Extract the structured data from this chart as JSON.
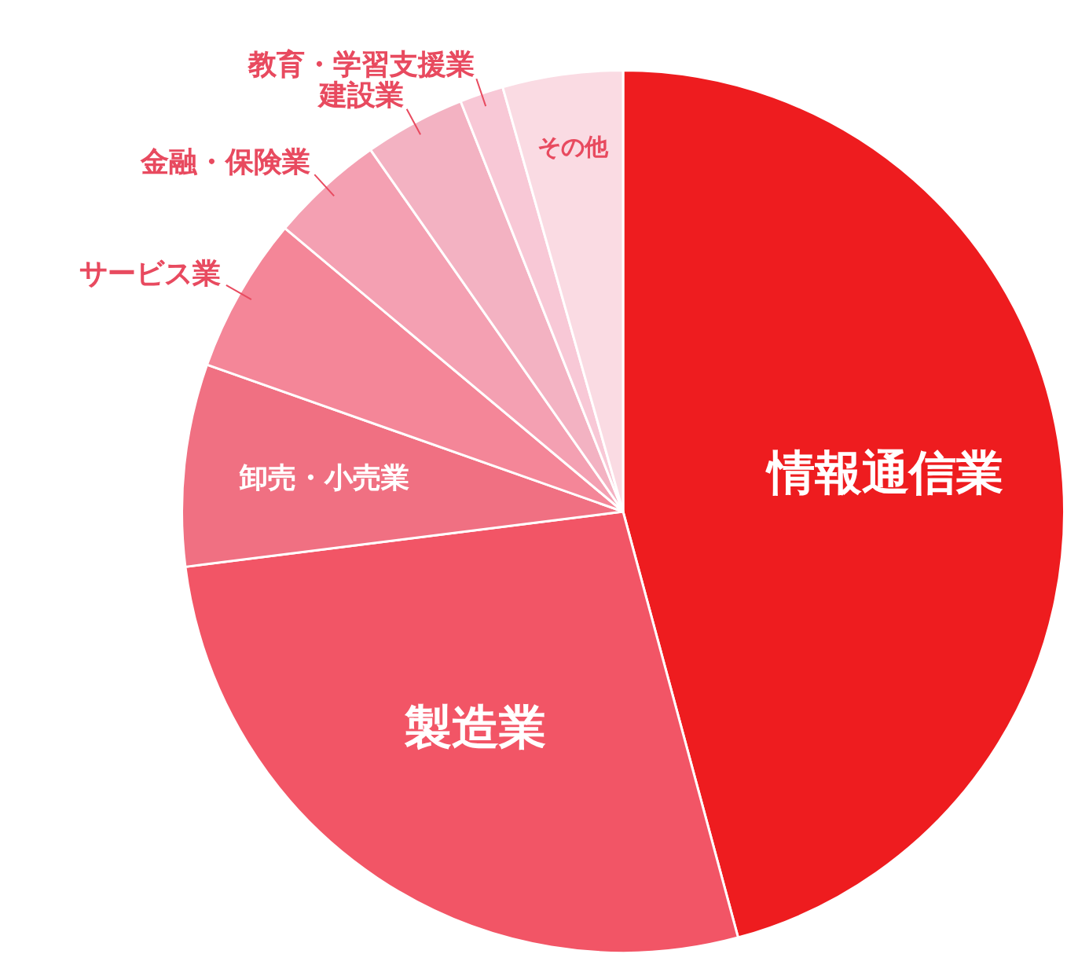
{
  "chart_data": {
    "type": "pie",
    "categories": [
      "情報通信業",
      "製造業",
      "卸売・小売業",
      "サービス業",
      "金融・保険業",
      "建設業",
      "教育・学習支援業",
      "その他"
    ],
    "values": [
      45.8,
      27.2,
      7.4,
      5.7,
      4.2,
      3.7,
      1.6,
      4.4
    ],
    "colors": [
      "#ee1c1f",
      "#f25566",
      "#f07082",
      "#f48698",
      "#f4a0b2",
      "#f3b2c2",
      "#f8c8d6",
      "#fadbe3"
    ],
    "legend": false
  }
}
